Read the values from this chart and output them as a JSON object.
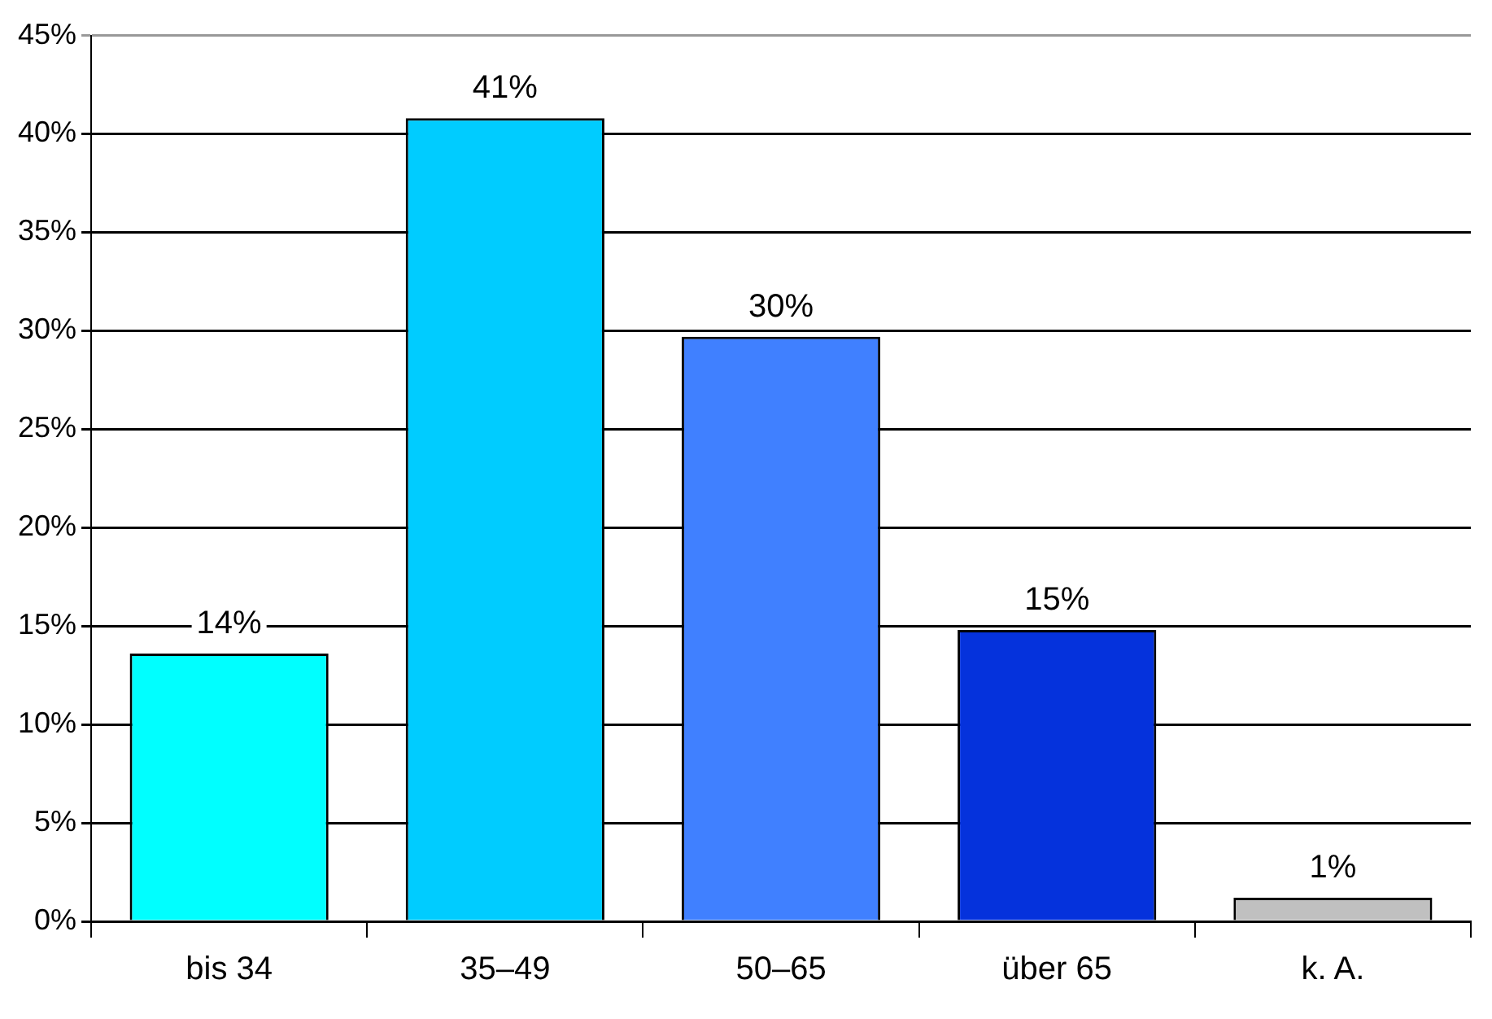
{
  "chart_data": {
    "type": "bar",
    "categories": [
      "bis 34",
      "35–49",
      "50–65",
      "über 65",
      "k. A."
    ],
    "values": [
      13.6,
      40.8,
      29.7,
      14.8,
      1.2
    ],
    "colors": [
      "#00ffff",
      "#00ccff",
      "#4080ff",
      "#0532dc",
      "#c0c0c0"
    ],
    "value_labels": [
      "14%",
      "41%",
      "30%",
      "15%",
      "1%"
    ],
    "ylim": [
      0,
      45
    ],
    "yticks": [
      {
        "value": 0,
        "label": "0%"
      },
      {
        "value": 5,
        "label": "5%"
      },
      {
        "value": 10,
        "label": "10%"
      },
      {
        "value": 15,
        "label": "15%"
      },
      {
        "value": 20,
        "label": "20%"
      },
      {
        "value": 25,
        "label": "25%"
      },
      {
        "value": 30,
        "label": "30%"
      },
      {
        "value": 35,
        "label": "35%"
      },
      {
        "value": 40,
        "label": "40%"
      },
      {
        "value": 45,
        "label": "45%"
      }
    ],
    "grid": "y",
    "legend": false
  }
}
